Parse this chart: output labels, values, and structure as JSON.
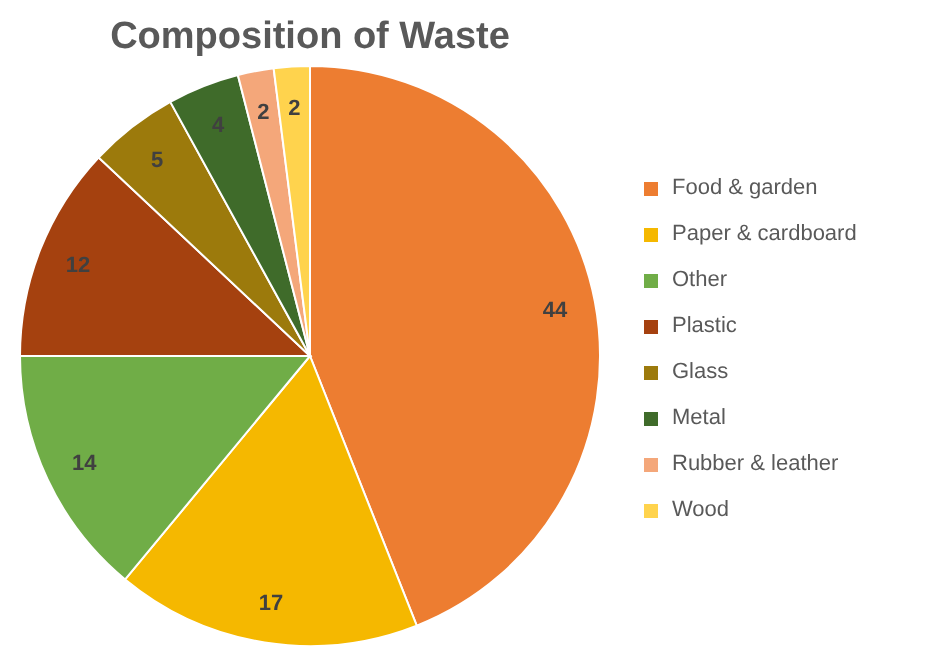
{
  "chart_data": {
    "type": "pie",
    "title": "Composition of Waste",
    "categories": [
      "Food & garden",
      "Paper & cardboard",
      "Other",
      "Plastic",
      "Glass",
      "Metal",
      "Rubber & leather",
      "Wood"
    ],
    "values": [
      44,
      17,
      14,
      12,
      5,
      4,
      2,
      2
    ],
    "colors": [
      "#ed7d31",
      "#f5b800",
      "#70ad47",
      "#a5410f",
      "#9c7a0c",
      "#3f6b2a",
      "#f4a77a",
      "#ffd34d"
    ],
    "data_labels": true,
    "legend": "right"
  }
}
